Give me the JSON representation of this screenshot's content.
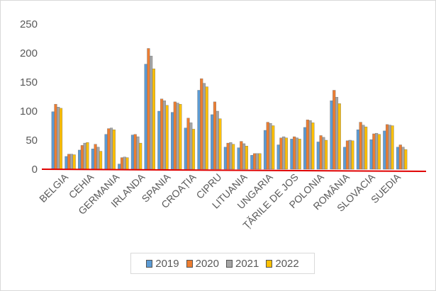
{
  "chart_data": {
    "type": "bar",
    "categories": [
      "BELGIA",
      "CEHIA",
      "GERMANIA",
      "IRLANDA",
      "SPANIA",
      "CROAȚIA",
      "CIPRU",
      "LITUANIA",
      "UNGARIA",
      "ȚĂRILE DE JOS",
      "POLONIA",
      "ROMÂNIA",
      "SLOVACIA",
      "SUEDIA"
    ],
    "series": [
      {
        "name": "2019",
        "color": "#5b9bd5",
        "values": [
          [
            99,
            112,
            107,
            105
          ],
          [
            22,
            26,
            26,
            25
          ],
          [
            33,
            41,
            45,
            46
          ],
          [
            35,
            43,
            38,
            31
          ],
          [
            60,
            70,
            71,
            68
          ],
          [
            9,
            20,
            21,
            20
          ],
          [
            59,
            60,
            56,
            45
          ],
          [
            181,
            208,
            195,
            173
          ],
          [
            100,
            121,
            118,
            110
          ],
          [
            98,
            116,
            114,
            112
          ],
          [
            71,
            88,
            80,
            69
          ],
          [
            136,
            156,
            148,
            142
          ],
          [
            94,
            116,
            100,
            87
          ],
          [
            38,
            45,
            46,
            43
          ],
          [
            37,
            48,
            44,
            40
          ],
          [
            24,
            27,
            27,
            27
          ],
          [
            67,
            81,
            79,
            75
          ],
          [
            42,
            54,
            56,
            54
          ],
          [
            52,
            56,
            54,
            52
          ],
          [
            72,
            85,
            84,
            80
          ],
          [
            47,
            58,
            55,
            50
          ],
          [
            118,
            136,
            124,
            113
          ],
          [
            38,
            49,
            50,
            49
          ],
          [
            68,
            81,
            76,
            73
          ],
          [
            51,
            61,
            62,
            60
          ],
          [
            66,
            77,
            76,
            75
          ],
          [
            38,
            42,
            38,
            34
          ]
        ]
      }
    ],
    "groups_per_category_note": "",
    "ylim": [
      0,
      250
    ],
    "yticks": [
      0,
      50,
      100,
      150,
      200,
      250
    ],
    "legend": [
      "2019",
      "2020",
      "2021",
      "2022"
    ],
    "legend_position": "bottom",
    "colors": [
      "#5b9bd5",
      "#ed7d31",
      "#a5a5a5",
      "#ffc000"
    ],
    "baseline_color": "#e00000",
    "gridlines": false
  }
}
